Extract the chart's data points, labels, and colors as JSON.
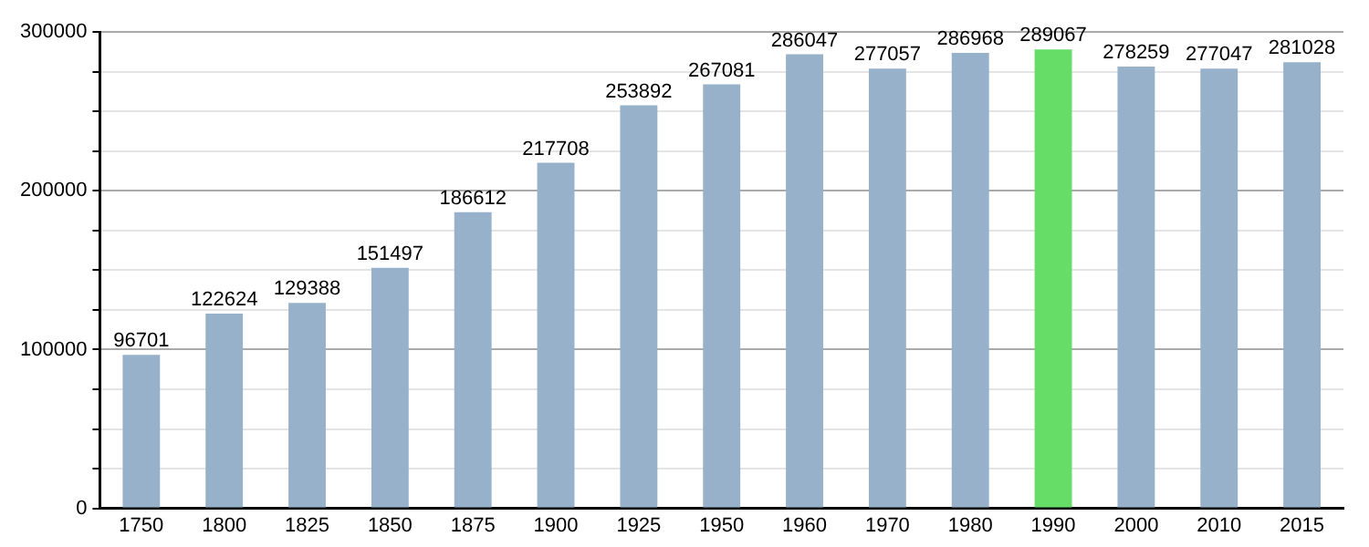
{
  "chart_data": {
    "type": "bar",
    "categories": [
      "1750",
      "1800",
      "1825",
      "1850",
      "1875",
      "1900",
      "1925",
      "1950",
      "1960",
      "1970",
      "1980",
      "1990",
      "2000",
      "2010",
      "2015"
    ],
    "values": [
      96701,
      122624,
      129388,
      151497,
      186612,
      217708,
      253892,
      267081,
      286047,
      277057,
      286968,
      289067,
      278259,
      277047,
      281028
    ],
    "colors": [
      "#98b1cb",
      "#98b1cb",
      "#98b1cb",
      "#98b1cb",
      "#98b1cb",
      "#98b1cb",
      "#98b1cb",
      "#98b1cb",
      "#98b1cb",
      "#98b1cb",
      "#98b1cb",
      "#66dd66",
      "#98b1cb",
      "#98b1cb",
      "#98b1cb"
    ],
    "ylim": [
      0,
      300000
    ],
    "yticks": [
      0,
      {
        "value": 25000,
        "label": null
      },
      {
        "value": 50000,
        "label": null
      },
      {
        "value": 75000,
        "label": null
      },
      100000,
      {
        "value": 125000,
        "label": null
      },
      {
        "value": 150000,
        "label": null
      },
      {
        "value": 175000,
        "label": null
      },
      200000,
      {
        "value": 225000,
        "label": null
      },
      {
        "value": 250000,
        "label": null
      },
      {
        "value": 275000,
        "label": null
      },
      300000
    ],
    "grid": true,
    "data_labels": true
  }
}
